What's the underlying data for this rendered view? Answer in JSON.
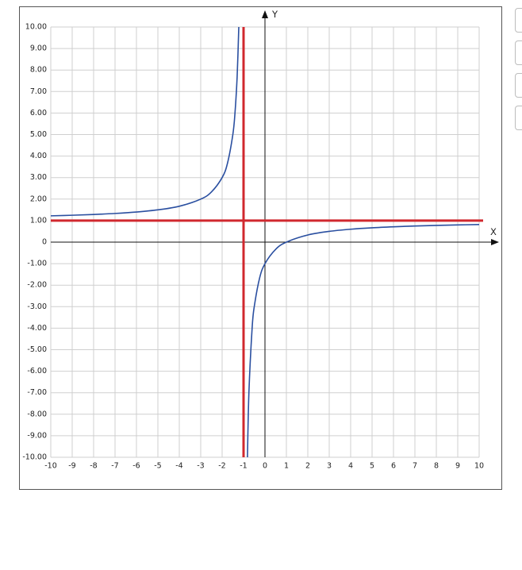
{
  "chart_data": {
    "type": "line",
    "title": "",
    "xlabel": "X",
    "ylabel": "Y",
    "xlim": [
      -10,
      10
    ],
    "ylim": [
      -10,
      10
    ],
    "grid": true,
    "x_ticks": [
      "-10",
      "-9",
      "-8",
      "-7",
      "-6",
      "-5",
      "-4",
      "-3",
      "-2",
      "-1",
      "0",
      "1",
      "2",
      "3",
      "4",
      "5",
      "6",
      "7",
      "8",
      "9",
      "10"
    ],
    "y_ticks": [
      "10.00",
      "9.00",
      "8.00",
      "7.00",
      "6.00",
      "5.00",
      "4.00",
      "3.00",
      "2.00",
      "1.00",
      "0",
      "-1.00",
      "-2.00",
      "-3.00",
      "-4.00",
      "-5.00",
      "-6.00",
      "-7.00",
      "-8.00",
      "-9.00",
      "-10.00"
    ],
    "series": [
      {
        "kind": "curve-left-branch",
        "color": "#2a4fa0",
        "points": [
          [
            -10,
            1.222
          ],
          [
            -9,
            1.25
          ],
          [
            -8,
            1.286
          ],
          [
            -7,
            1.333
          ],
          [
            -6,
            1.4
          ],
          [
            -5,
            1.5
          ],
          [
            -4,
            1.667
          ],
          [
            -3,
            2.0
          ],
          [
            -2.5,
            2.333
          ],
          [
            -2,
            3.0
          ],
          [
            -1.75,
            3.667
          ],
          [
            -1.5,
            5.0
          ],
          [
            -1.4,
            6.0
          ],
          [
            -1.3,
            7.667
          ],
          [
            -1.222,
            10.0
          ]
        ]
      },
      {
        "kind": "curve-right-branch",
        "color": "#2a4fa0",
        "points": [
          [
            -0.818,
            -10.0
          ],
          [
            -0.75,
            -7.0
          ],
          [
            -0.6,
            -4.0
          ],
          [
            -0.5,
            -3.0
          ],
          [
            -0.25,
            -1.667
          ],
          [
            0,
            -1.0
          ],
          [
            0.5,
            -0.333
          ],
          [
            1,
            0
          ],
          [
            2,
            0.333
          ],
          [
            3,
            0.5
          ],
          [
            4,
            0.6
          ],
          [
            5,
            0.667
          ],
          [
            6,
            0.714
          ],
          [
            7,
            0.75
          ],
          [
            8,
            0.778
          ],
          [
            9,
            0.8
          ],
          [
            10,
            0.818
          ]
        ]
      }
    ],
    "asymptotes": [
      {
        "orientation": "vertical",
        "value": -1,
        "color": "#d0282e"
      },
      {
        "orientation": "horizontal",
        "value": 1,
        "color": "#d0282e"
      }
    ]
  }
}
